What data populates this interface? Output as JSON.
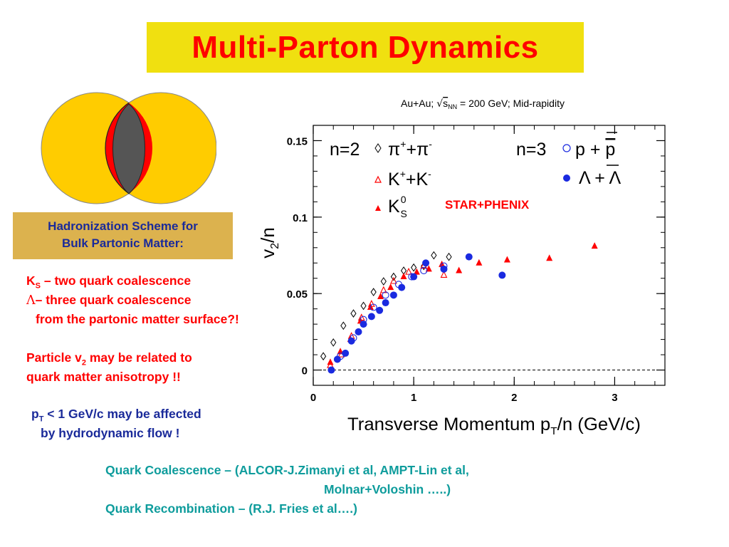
{
  "title": "Multi-Parton Dynamics",
  "hadronization": {
    "line1": "Hadronization Scheme for",
    "line2": "Bulk Partonic Matter:"
  },
  "notes": {
    "ks_sym": "K",
    "ks_sub": "S",
    "ks_text": " – two quark coalescence",
    "lambda_sym": "Λ",
    "lambda_text": "– three quark coalescence",
    "surface": "from the partonic matter surface?!",
    "v2_a": "Particle v",
    "v2_sub": "2",
    "v2_b": " may be related to",
    "v2_line2": "quark matter anisotropy !!",
    "pt_a": "p",
    "pt_sub": "T",
    "pt_b": " < 1 GeV/c may be affected",
    "pt_line2": "by hydrodynamic flow !"
  },
  "references": {
    "line1": "Quark Coalescence – (ALCOR-J.Zimanyi et al, AMPT-Lin et al,",
    "line2": "Molnar+Voloshin …..)",
    "line3": "Quark Recombination – (R.J. Fries et al….)"
  },
  "colors": {
    "title_bg": "#f0e010",
    "title_fg": "#ff0000",
    "box_bg": "#dcb24e",
    "blue": "#1a2a9a",
    "red": "#ff0000",
    "teal": "#0e9c9c",
    "venn_fill": "#ffcc00",
    "venn_core": "#555555"
  },
  "chart_data": {
    "type": "scatter",
    "title": "Au+Au; √sNN = 200 GeV; Mid-rapidity",
    "title_a": "Au+Au; ",
    "title_sqrt": "√",
    "title_s": "s",
    "title_nn": "NN",
    "title_b": " = 200 GeV; Mid-rapidity",
    "xlabel_a": "Transverse Momentum p",
    "xlabel_sub": "T",
    "xlabel_b": "/n (GeV/c)",
    "ylabel_a": "v",
    "ylabel_sub": "2",
    "ylabel_b": "/n",
    "xlim": [
      0,
      3.5
    ],
    "ylim": [
      -0.01,
      0.16
    ],
    "xticks": [
      0,
      1,
      2,
      3
    ],
    "xtick_labels": [
      "0",
      "1",
      "2",
      "3"
    ],
    "yticks": [
      0,
      0.05,
      0.1,
      0.15
    ],
    "ytick_labels": [
      "0",
      "0.05",
      "0.1",
      "0.15"
    ],
    "legend": {
      "n2": "n=2",
      "n3": "n=3",
      "pi": "π",
      "pi_sup1": "+",
      "pi_plus": "+π",
      "pi_sup2": "-",
      "k": "K",
      "k_sup1": "+",
      "k_plus": "+K",
      "k_sup2": "-",
      "ks": "K",
      "ks_sup": "0",
      "ks_sub": "S",
      "p": "p + ",
      "pbar": "p",
      "lam": "Λ + ",
      "lambar": "Λ"
    },
    "annotation": "STAR+PHENIX",
    "series": [
      {
        "name": "π⁺+π⁻",
        "marker": "open-diamond",
        "color": "#000000",
        "x": [
          0.1,
          0.2,
          0.3,
          0.4,
          0.5,
          0.6,
          0.7,
          0.8,
          0.9,
          1.0,
          1.1,
          1.2,
          1.35
        ],
        "y": [
          0.009,
          0.018,
          0.029,
          0.037,
          0.042,
          0.051,
          0.058,
          0.061,
          0.065,
          0.067,
          0.068,
          0.075,
          0.074
        ]
      },
      {
        "name": "K⁺+K⁻",
        "marker": "open-triangle",
        "color": "#ff0000",
        "x": [
          0.17,
          0.28,
          0.38,
          0.48,
          0.58,
          0.7,
          0.8,
          0.95,
          1.1,
          1.3
        ],
        "y": [
          0.003,
          0.01,
          0.022,
          0.034,
          0.043,
          0.052,
          0.058,
          0.064,
          0.068,
          0.062
        ]
      },
      {
        "name": "K⁰S",
        "marker": "filled-triangle",
        "color": "#ff0000",
        "x": [
          0.17,
          0.27,
          0.37,
          0.47,
          0.57,
          0.67,
          0.77,
          0.9,
          1.03,
          1.15,
          1.28,
          1.45,
          1.65,
          1.93,
          2.35,
          2.8
        ],
        "y": [
          0.005,
          0.012,
          0.02,
          0.032,
          0.041,
          0.048,
          0.054,
          0.061,
          0.064,
          0.066,
          0.069,
          0.065,
          0.07,
          0.072,
          0.073,
          0.081
        ]
      },
      {
        "name": "p + p̄",
        "marker": "open-circle",
        "color": "#1a2ae0",
        "x": [
          0.27,
          0.4,
          0.5,
          0.6,
          0.72,
          0.85,
          0.98,
          1.1,
          1.3
        ],
        "y": [
          0.009,
          0.021,
          0.033,
          0.041,
          0.049,
          0.056,
          0.061,
          0.065,
          0.068
        ]
      },
      {
        "name": "Λ + Λ̄",
        "marker": "filled-circle",
        "color": "#1a2ae0",
        "x": [
          0.18,
          0.24,
          0.32,
          0.38,
          0.45,
          0.5,
          0.58,
          0.66,
          0.72,
          0.8,
          0.88,
          1.0,
          1.12,
          1.3,
          1.55,
          1.88
        ],
        "y": [
          0.0,
          0.007,
          0.011,
          0.019,
          0.025,
          0.03,
          0.035,
          0.039,
          0.044,
          0.049,
          0.054,
          0.061,
          0.07,
          0.066,
          0.074,
          0.062
        ]
      }
    ]
  }
}
